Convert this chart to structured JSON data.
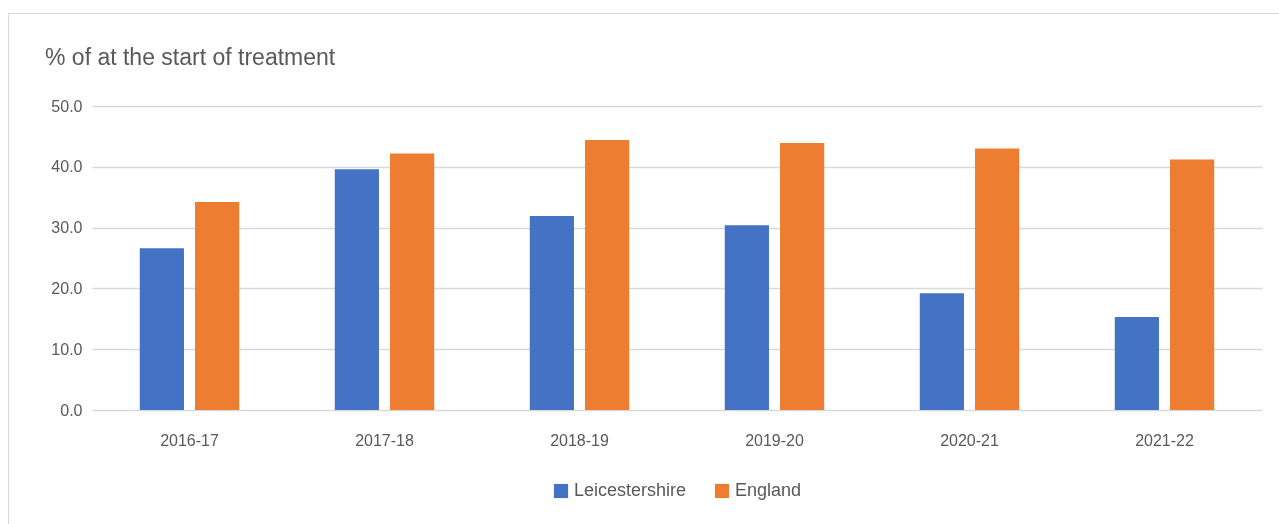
{
  "chart_data": {
    "type": "bar",
    "title": "% of at the start of treatment",
    "categories": [
      "2016-17",
      "2017-18",
      "2018-19",
      "2019-20",
      "2020-21",
      "2021-22"
    ],
    "series": [
      {
        "name": "Leicestershire",
        "color": "#4472c4",
        "values": [
          26.6,
          39.6,
          31.9,
          30.4,
          19.2,
          15.3
        ]
      },
      {
        "name": "England",
        "color": "#ed7d31",
        "values": [
          34.2,
          42.2,
          44.4,
          43.9,
          43.0,
          41.2
        ]
      }
    ],
    "ylim": [
      0,
      50
    ],
    "yticks": [
      {
        "value": 0,
        "label": "0.0"
      },
      {
        "value": 10,
        "label": "10.0"
      },
      {
        "value": 20,
        "label": "20.0"
      },
      {
        "value": 30,
        "label": "30.0"
      },
      {
        "value": 40,
        "label": "40.0"
      },
      {
        "value": 50,
        "label": "50.0"
      }
    ],
    "grid": "y",
    "legend": "bottom"
  }
}
